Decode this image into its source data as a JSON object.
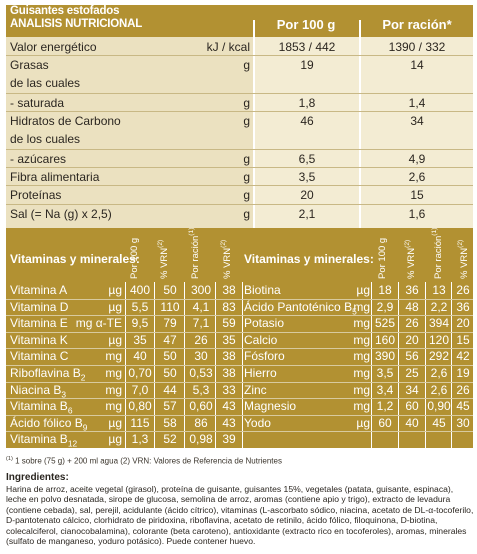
{
  "product": "Guisantes estofados",
  "table_title": "ANALISIS NUTRICIONAL",
  "col_per100": "Por 100 g",
  "col_ration": "Por ración*",
  "nutrition": [
    {
      "label": "Valor energético",
      "unit": "kJ / kcal",
      "per100": "1853 / 442",
      "ration": "1390 / 332"
    },
    {
      "label": "Grasas",
      "unit": "g",
      "per100": "19",
      "ration": "14"
    },
    {
      "label": "de las cuales",
      "unit": "",
      "per100": "",
      "ration": ""
    },
    {
      "label": " - saturada",
      "unit": "g",
      "per100": "1,8",
      "ration": "1,4"
    },
    {
      "label": "Hidratos de Carbono",
      "unit": "g",
      "per100": "46",
      "ration": "34"
    },
    {
      "label": "de los cuales",
      "unit": "",
      "per100": "",
      "ration": ""
    },
    {
      "label": " - azúcares",
      "unit": "g",
      "per100": "6,5",
      "ration": "4,9"
    },
    {
      "label": "Fibra alimentaria",
      "unit": "g",
      "per100": "3,5",
      "ration": "2,6"
    },
    {
      "label": "Proteínas",
      "unit": "g",
      "per100": "20",
      "ration": "15"
    },
    {
      "label": "Sal (= Na (g) x 2,5)",
      "unit": "g",
      "per100": "2,1",
      "ration": "1,6"
    }
  ],
  "vit_header": {
    "label": "Vitaminas y minerales:",
    "per100": "Por 100 g",
    "vrn1": "% VRN",
    "vrn1_sup": "(2)",
    "ration": "Por ración",
    "ration_sup": "(1)",
    "vrn2": "% VRN",
    "vrn2_sup": "(2)"
  },
  "vitamins_left": [
    {
      "name": "Vitamina A",
      "unit": "µg",
      "per100": "400",
      "vrn1": "50",
      "ration": "300",
      "vrn2": "38"
    },
    {
      "name": "Vitamina D",
      "unit": "µg",
      "per100": "5,5",
      "vrn1": "110",
      "ration": "4,1",
      "vrn2": "83"
    },
    {
      "name": "Vitamina E",
      "unit": "mg α-TE",
      "per100": "9,5",
      "vrn1": "79",
      "ration": "7,1",
      "vrn2": "59"
    },
    {
      "name": "Vitamina K",
      "unit": "µg",
      "per100": "35",
      "vrn1": "47",
      "ration": "26",
      "vrn2": "35"
    },
    {
      "name": "Vitamina C",
      "unit": "mg",
      "per100": "40",
      "vrn1": "50",
      "ration": "30",
      "vrn2": "38"
    },
    {
      "name": "Riboflavina B2",
      "unit": "mg",
      "per100": "0,70",
      "vrn1": "50",
      "ration": "0,53",
      "vrn2": "38"
    },
    {
      "name": "Niacina B3",
      "unit": "mg",
      "per100": "7,0",
      "vrn1": "44",
      "ration": "5,3",
      "vrn2": "33"
    },
    {
      "name": "Vitamina B6",
      "unit": "mg",
      "per100": "0,80",
      "vrn1": "57",
      "ration": "0,60",
      "vrn2": "43"
    },
    {
      "name": "Ácido fólico B9",
      "unit": "µg",
      "per100": "115",
      "vrn1": "58",
      "ration": "86",
      "vrn2": "43"
    },
    {
      "name": "Vitamina B12",
      "unit": "µg",
      "per100": "1,3",
      "vrn1": "52",
      "ration": "0,98",
      "vrn2": "39"
    }
  ],
  "vitamins_right": [
    {
      "name": "Biotina",
      "unit": "µg",
      "per100": "18",
      "vrn1": "36",
      "ration": "13",
      "vrn2": "26"
    },
    {
      "name": "Ácido Pantoténico B5",
      "unit": "mg",
      "per100": "2,9",
      "vrn1": "48",
      "ration": "2,2",
      "vrn2": "36"
    },
    {
      "name": "Potasio",
      "unit": "mg",
      "per100": "525",
      "vrn1": "26",
      "ration": "394",
      "vrn2": "20"
    },
    {
      "name": "Calcio",
      "unit": "mg",
      "per100": "160",
      "vrn1": "20",
      "ration": "120",
      "vrn2": "15"
    },
    {
      "name": "Fósforo",
      "unit": "mg",
      "per100": "390",
      "vrn1": "56",
      "ration": "292",
      "vrn2": "42"
    },
    {
      "name": "Hierro",
      "unit": "mg",
      "per100": "3,5",
      "vrn1": "25",
      "ration": "2,6",
      "vrn2": "19"
    },
    {
      "name": "Zinc",
      "unit": "mg",
      "per100": "3,4",
      "vrn1": "34",
      "ration": "2,6",
      "vrn2": "26"
    },
    {
      "name": "Magnesio",
      "unit": "mg",
      "per100": "1,2",
      "vrn1": "60",
      "ration": "0,90",
      "vrn2": "45"
    },
    {
      "name": "Yodo",
      "unit": "µg",
      "per100": "60",
      "vrn1": "40",
      "ration": "45",
      "vrn2": "30"
    }
  ],
  "footnote": "(1) 1 sobre (75 g) + 200 ml agua  (2) VRN: Valores de Referencia de Nutrientes",
  "ingredients_title": "Ingredientes:",
  "ingredients": "Harina de arroz, aceite vegetal (girasol), proteína de guisante, guisantes 15%, vegetales (patata, guisante, espinaca), leche en polvo desnatada, sirope de glucosa, semolina de arroz, aromas (contiene apio y trigo), extracto de levadura (contiene cebada), sal, perejil, acidulante (ácido cítrico), vitaminas (L-ascorbato sódico, niacina, acetato de DL-α-tocoferilo, D-pantotenato cálcico, clorhidrato de piridoxina, riboflavina, acetato de retinilo, ácido fólico, filoquinona, D-biotina, colecalciferol, cianocobalamina), colorante (beta caroteno), antioxidante (extracto rico en tocoferoles), aromas, minerales (sulfato de manganeso, yoduro potásico). Puede contener huevo.",
  "colors": {
    "gold": "#b29132",
    "cream": "#f3ecd3",
    "cream_alt": "#ebe1c0"
  }
}
